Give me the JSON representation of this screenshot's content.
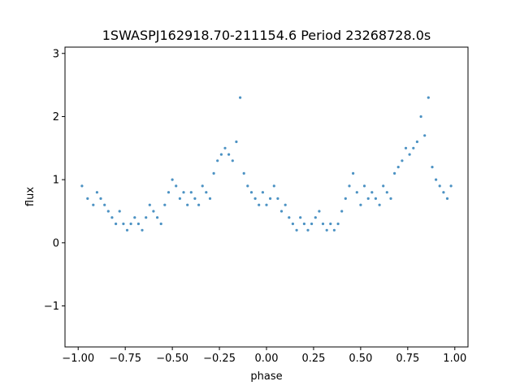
{
  "chart_data": {
    "type": "scatter",
    "title": "1SWASPJ162918.70-211154.6 Period 23268728.0s",
    "xlabel": "phase",
    "ylabel": "flux",
    "xlim": [
      -1.07,
      1.07
    ],
    "ylim": [
      -1.65,
      3.1
    ],
    "x_ticks": [
      -1.0,
      -0.75,
      -0.5,
      -0.25,
      0.0,
      0.25,
      0.5,
      0.75,
      1.0
    ],
    "x_tick_labels": [
      "−1.00",
      "−0.75",
      "−0.50",
      "−0.25",
      "0.00",
      "0.25",
      "0.50",
      "0.75",
      "1.00"
    ],
    "y_ticks": [
      -1,
      0,
      1,
      2,
      3
    ],
    "y_tick_labels": [
      "−1",
      "0",
      "1",
      "2",
      "3"
    ],
    "grid": false,
    "marker_color": "#1f77b4",
    "series": [
      {
        "name": "",
        "x": [
          -0.98,
          -0.95,
          -0.92,
          -0.9,
          -0.88,
          -0.86,
          -0.84,
          -0.82,
          -0.8,
          -0.78,
          -0.76,
          -0.74,
          -0.72,
          -0.7,
          -0.68,
          -0.66,
          -0.64,
          -0.62,
          -0.6,
          -0.58,
          -0.56,
          -0.54,
          -0.52,
          -0.5,
          -0.48,
          -0.46,
          -0.44,
          -0.42,
          -0.4,
          -0.38,
          -0.36,
          -0.34,
          -0.32,
          -0.3,
          -0.28,
          -0.26,
          -0.24,
          -0.22,
          -0.2,
          -0.18,
          -0.16,
          -0.14,
          -0.12,
          -0.1,
          -0.08,
          -0.06,
          -0.04,
          -0.02,
          0.0,
          0.02,
          0.04,
          0.06,
          0.08,
          0.1,
          0.12,
          0.14,
          0.16,
          0.18,
          0.2,
          0.22,
          0.24,
          0.26,
          0.28,
          0.3,
          0.32,
          0.34,
          0.36,
          0.38,
          0.4,
          0.42,
          0.44,
          0.46,
          0.48,
          0.5,
          0.52,
          0.54,
          0.56,
          0.58,
          0.6,
          0.62,
          0.64,
          0.66,
          0.68,
          0.7,
          0.72,
          0.74,
          0.76,
          0.78,
          0.8,
          0.82,
          0.84,
          0.86,
          0.88,
          0.9,
          0.92,
          0.94,
          0.96,
          0.98
        ],
        "y": [
          0.9,
          0.7,
          0.6,
          0.8,
          0.7,
          0.6,
          0.5,
          0.4,
          0.3,
          0.5,
          0.3,
          0.2,
          0.3,
          0.4,
          0.3,
          0.2,
          0.4,
          0.6,
          0.5,
          0.4,
          0.3,
          0.6,
          0.8,
          1.0,
          0.9,
          0.7,
          0.8,
          0.6,
          0.8,
          0.7,
          0.6,
          0.9,
          0.8,
          0.7,
          1.1,
          1.3,
          1.4,
          1.5,
          1.4,
          1.3,
          1.6,
          2.3,
          1.1,
          0.9,
          0.8,
          0.7,
          0.6,
          0.8,
          0.6,
          0.7,
          0.9,
          0.7,
          0.5,
          0.6,
          0.4,
          0.3,
          0.2,
          0.4,
          0.3,
          0.2,
          0.3,
          0.4,
          0.5,
          0.3,
          0.2,
          0.3,
          0.2,
          0.3,
          0.5,
          0.7,
          0.9,
          1.1,
          0.8,
          0.6,
          0.9,
          0.7,
          0.8,
          0.7,
          0.6,
          0.9,
          0.8,
          0.7,
          1.1,
          1.2,
          1.3,
          1.5,
          1.4,
          1.5,
          1.6,
          2.0,
          1.7,
          2.3,
          1.2,
          1.0,
          0.9,
          0.8,
          0.7,
          0.9
        ]
      }
    ]
  }
}
